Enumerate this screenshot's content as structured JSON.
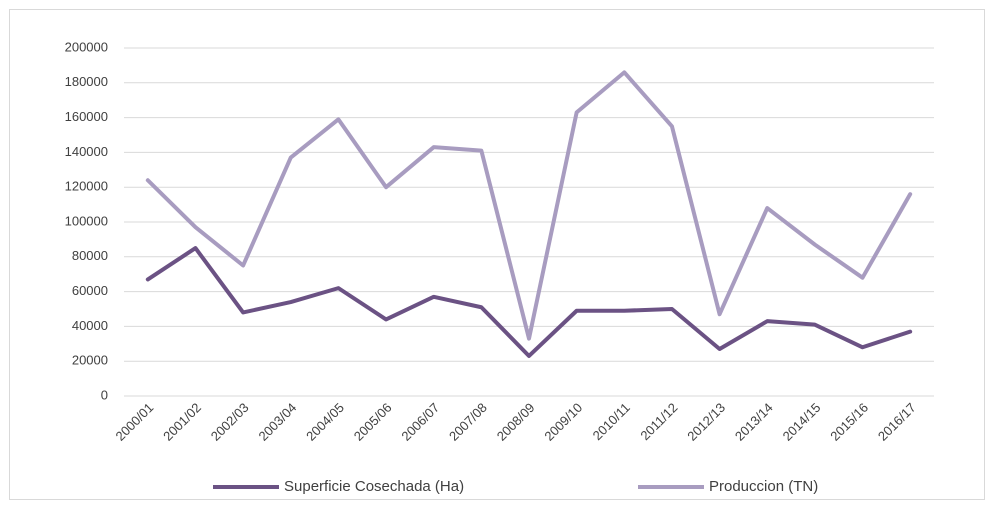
{
  "chart_data": {
    "type": "line",
    "categories": [
      "2000/01",
      "2001/02",
      "2002/03",
      "2003/04",
      "2004/05",
      "2005/06",
      "2006/07",
      "2007/08",
      "2008/09",
      "2009/10",
      "2010/11",
      "2011/12",
      "2012/13",
      "2013/14",
      "2014/15",
      "2015/16",
      "2016/17"
    ],
    "series": [
      {
        "name": "Superficie Cosechada (Ha)",
        "color": "#6b5284",
        "values": [
          67000,
          85000,
          48000,
          54000,
          62000,
          44000,
          57000,
          51000,
          23000,
          49000,
          49000,
          50000,
          27000,
          43000,
          41000,
          28000,
          37000
        ]
      },
      {
        "name": "Produccion (TN)",
        "color": "#a89cc0",
        "values": [
          124000,
          97000,
          75000,
          137000,
          159000,
          120000,
          143000,
          141000,
          33000,
          163000,
          186000,
          155000,
          47000,
          108000,
          87000,
          68000,
          116000
        ]
      }
    ],
    "ylim": [
      0,
      200000
    ],
    "yticks": [
      0,
      20000,
      40000,
      60000,
      80000,
      100000,
      120000,
      140000,
      160000,
      180000,
      200000
    ],
    "grid": true,
    "legend": "bottom"
  }
}
